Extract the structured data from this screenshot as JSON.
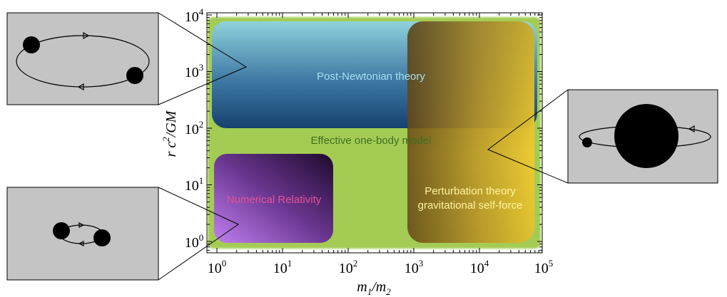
{
  "axes": {
    "x_label_main": "m",
    "x_label_sub1": "1",
    "x_label_slash": "/m",
    "x_label_sub2": "2",
    "y_label_main": "r c",
    "y_label_sup": "2",
    "y_label_rest": "/GM",
    "x_ticks": [
      {
        "base": "10",
        "exp": "0"
      },
      {
        "base": "10",
        "exp": "1"
      },
      {
        "base": "10",
        "exp": "2"
      },
      {
        "base": "10",
        "exp": "3"
      },
      {
        "base": "10",
        "exp": "4"
      },
      {
        "base": "10",
        "exp": "5"
      }
    ],
    "y_ticks": [
      {
        "base": "10",
        "exp": "0"
      },
      {
        "base": "10",
        "exp": "1"
      },
      {
        "base": "10",
        "exp": "2"
      },
      {
        "base": "10",
        "exp": "3"
      },
      {
        "base": "10",
        "exp": "4"
      }
    ]
  },
  "regions": {
    "effective_one_body": "Effective one-body model",
    "post_newtonian": "Post-Newtonian theory",
    "numerical_relativity": "Numerical Relativity",
    "perturbation_line1": "Perturbation theory",
    "perturbation_line2": "gravitational self-force"
  },
  "colors": {
    "eob_green": "#a4cc55",
    "pn_top": "#8fd2dc",
    "pn_bottom": "#1a4a78",
    "nr_dark": "#2a0e3c",
    "nr_light": "#b070e0",
    "pt_gold": "#e8c028",
    "pt_brown": "#7a5418",
    "inset_bg": "#c4c4c4"
  }
}
